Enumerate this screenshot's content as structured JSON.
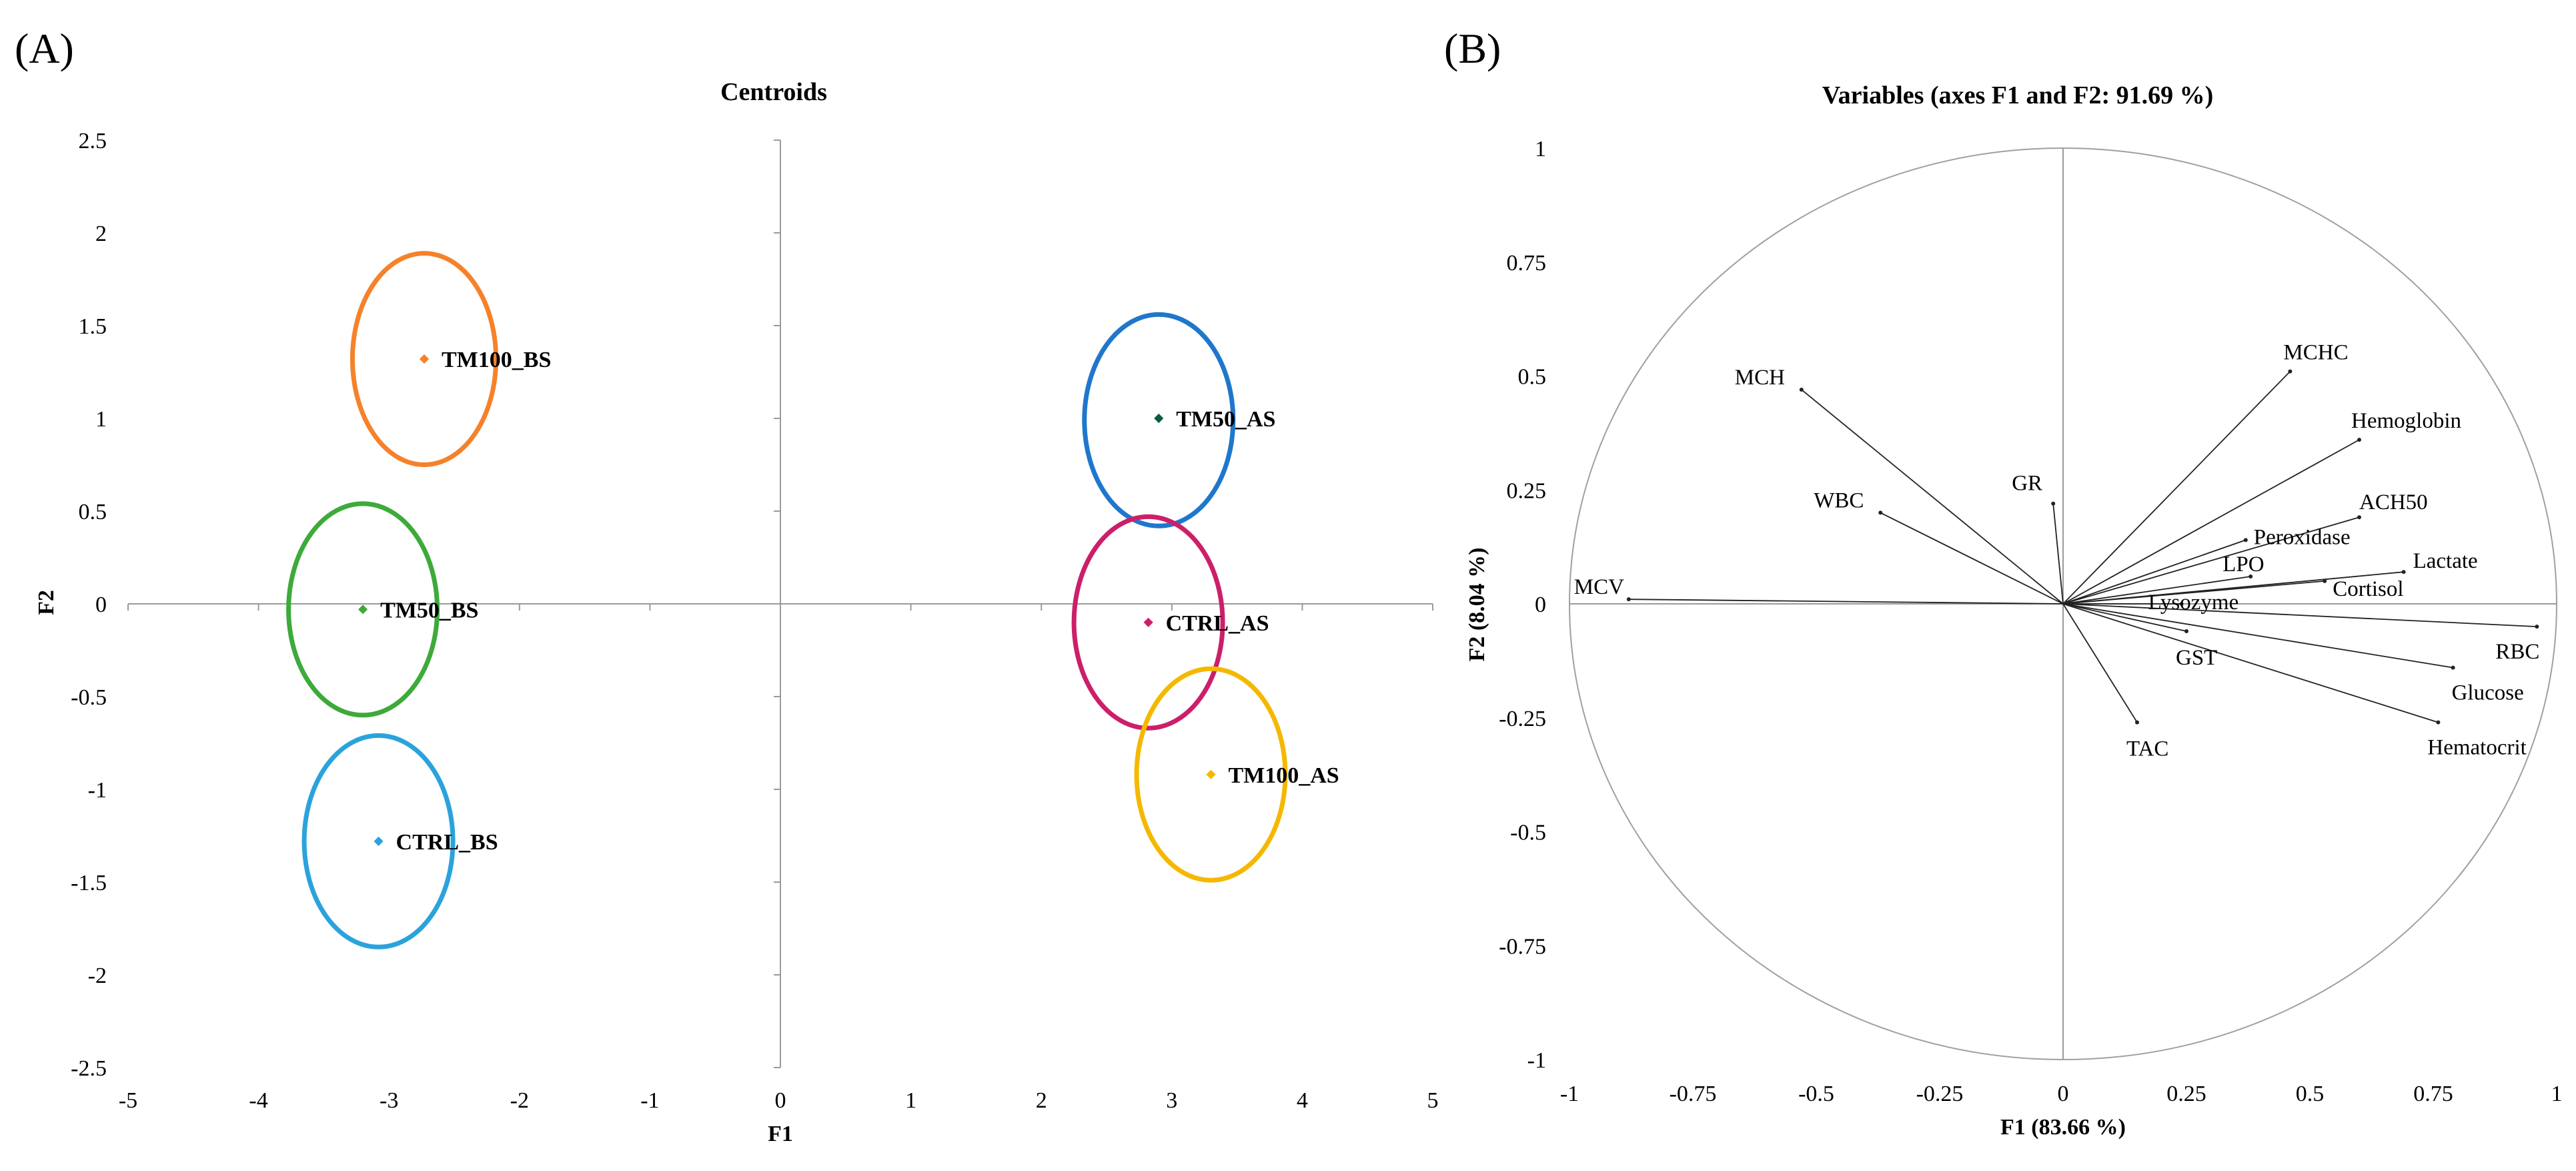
{
  "panels": {
    "a_label": "(A)",
    "b_label": "(B)"
  },
  "chart_data": [
    {
      "type": "scatter",
      "title": "Centroids",
      "xlabel": "F1",
      "ylabel": "F2",
      "xlim": [
        -5,
        5
      ],
      "ylim": [
        -2.5,
        2.5
      ],
      "xticks": [
        "-5",
        "-4",
        "-3",
        "-2",
        "-1",
        "0",
        "1",
        "2",
        "3",
        "4",
        "5"
      ],
      "yticks": [
        "2.5",
        "2",
        "1.5",
        "1",
        "0.5",
        "0",
        "-0.5",
        "-1",
        "-1.5",
        "-2",
        "-2.5"
      ],
      "grid": false,
      "points": [
        {
          "name": "TM100_BS",
          "x": -2.73,
          "y": 1.32,
          "color": "#f5822a",
          "ellipse_color": "#f5822a",
          "rx": 0.55,
          "ry": 0.57,
          "cx": -2.73,
          "cy": 1.32
        },
        {
          "name": "TM50_BS",
          "x": -3.2,
          "y": -0.03,
          "color": "#3daa3a",
          "ellipse_color": "#3daa3a",
          "rx": 0.57,
          "ry": 0.57,
          "cx": -3.2,
          "cy": -0.03
        },
        {
          "name": "CTRL_BS",
          "x": -3.08,
          "y": -1.28,
          "color": "#2aa3dc",
          "ellipse_color": "#2aa3dc",
          "rx": 0.57,
          "ry": 0.57,
          "cx": -3.08,
          "cy": -1.28
        },
        {
          "name": "TM50_AS",
          "x": 2.9,
          "y": 1.0,
          "color": "#0b5c3b",
          "ellipse_color": "#1f77cc",
          "rx": 0.57,
          "ry": 0.57,
          "cx": 2.9,
          "cy": 0.99
        },
        {
          "name": "CTRL_AS",
          "x": 2.82,
          "y": -0.1,
          "color": "#cc1f6a",
          "ellipse_color": "#cc1f6a",
          "rx": 0.57,
          "ry": 0.57,
          "cx": 2.82,
          "cy": -0.1
        },
        {
          "name": "TM100_AS",
          "x": 3.3,
          "y": -0.92,
          "color": "#f5b800",
          "ellipse_color": "#f5b800",
          "rx": 0.57,
          "ry": 0.57,
          "cx": 3.3,
          "cy": -0.92
        }
      ]
    },
    {
      "type": "scatter",
      "title": "Variables (axes F1 and F2: 91.69 %)",
      "xlabel": "F1 (83.66 %)",
      "ylabel": "F2 (8.04 %)",
      "xlim": [
        -1,
        1
      ],
      "ylim": [
        -1,
        1
      ],
      "xticks": [
        "-1",
        "-0.75",
        "-0.5",
        "-0.25",
        "0",
        "0.25",
        "0.5",
        "0.75",
        "1"
      ],
      "yticks": [
        "1",
        "0.75",
        "0.5",
        "0.25",
        "0",
        "-0.25",
        "-0.5",
        "-0.75",
        "-1"
      ],
      "grid": false,
      "correlation_circle": true,
      "vectors": [
        {
          "name": "MCHC",
          "x": 0.46,
          "y": 0.51
        },
        {
          "name": "Hemoglobin",
          "x": 0.6,
          "y": 0.36
        },
        {
          "name": "ACH50",
          "x": 0.6,
          "y": 0.19
        },
        {
          "name": "Peroxidase",
          "x": 0.37,
          "y": 0.14
        },
        {
          "name": "Lactate",
          "x": 0.69,
          "y": 0.07
        },
        {
          "name": "LPO",
          "x": 0.38,
          "y": 0.06
        },
        {
          "name": "Cortisol",
          "x": 0.53,
          "y": 0.05
        },
        {
          "name": "Lysozyme",
          "x": 0.24,
          "y": 0.0
        },
        {
          "name": "RBC",
          "x": 0.96,
          "y": -0.05
        },
        {
          "name": "Glucose",
          "x": 0.79,
          "y": -0.14
        },
        {
          "name": "Hematocrit",
          "x": 0.76,
          "y": -0.26
        },
        {
          "name": "GST",
          "x": 0.25,
          "y": -0.06
        },
        {
          "name": "TAC",
          "x": 0.15,
          "y": -0.26
        },
        {
          "name": "GR",
          "x": -0.02,
          "y": 0.22
        },
        {
          "name": "MCH",
          "x": -0.53,
          "y": 0.47
        },
        {
          "name": "WBC",
          "x": -0.37,
          "y": 0.2
        },
        {
          "name": "MCV",
          "x": -0.88,
          "y": 0.01
        }
      ]
    }
  ]
}
